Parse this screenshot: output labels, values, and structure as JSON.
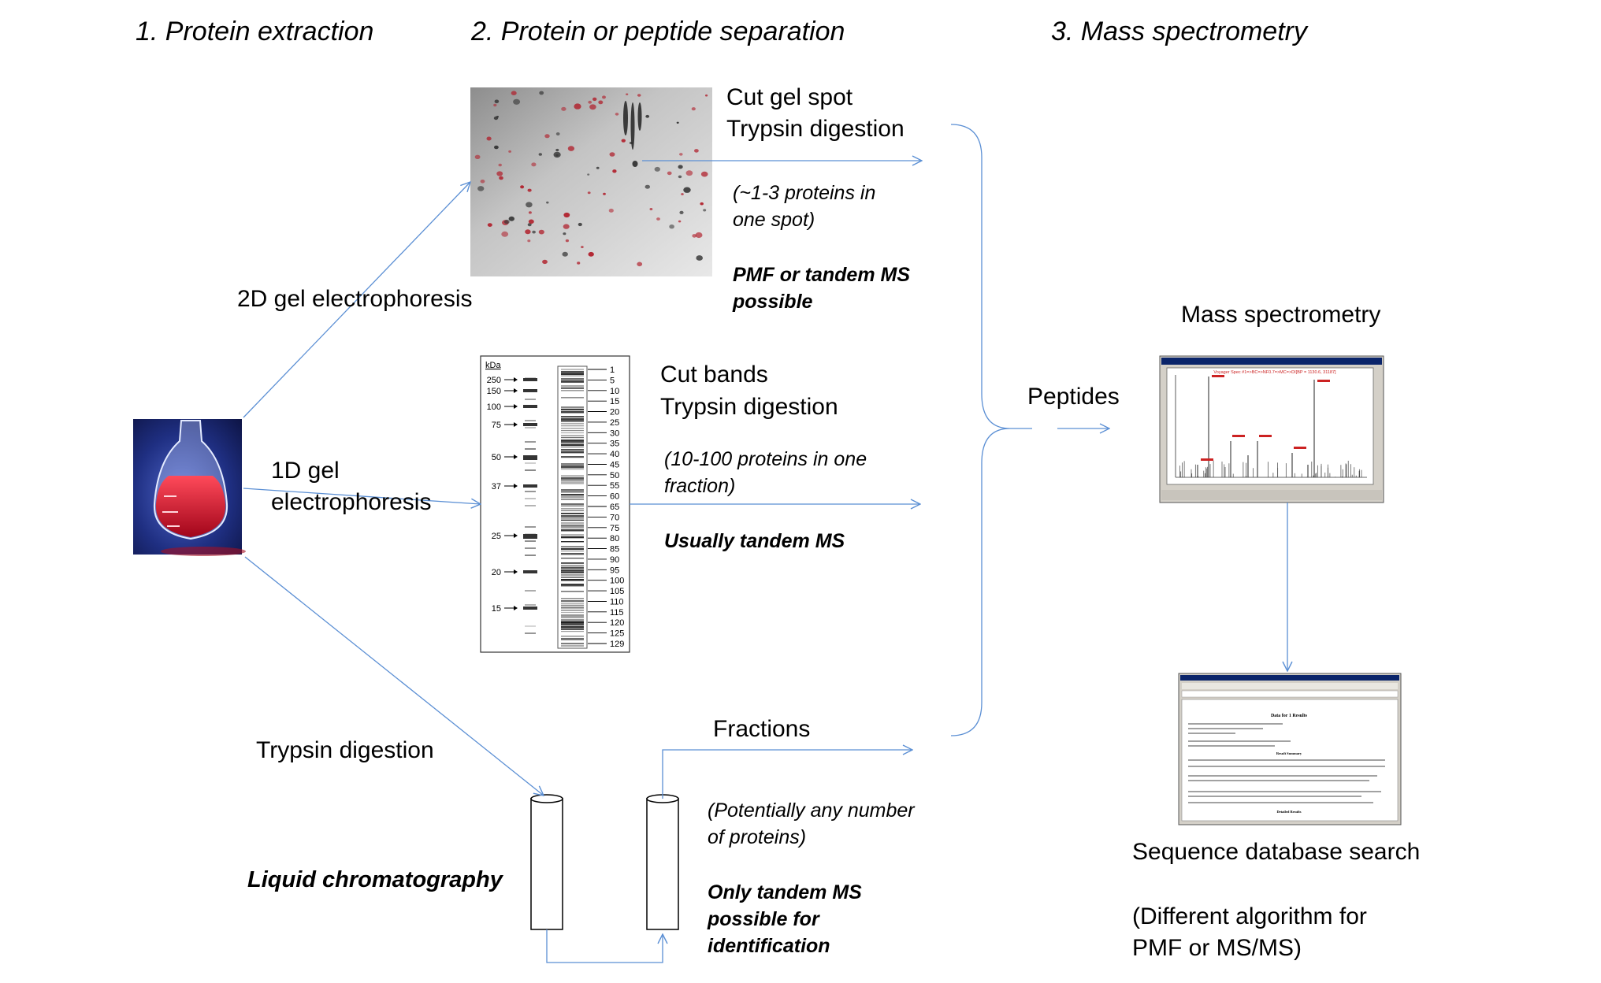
{
  "steps": {
    "extraction": "1. Protein extraction",
    "separation": "2. Protein or peptide separation",
    "mass_spec": "3. Mass spectrometry"
  },
  "methods": {
    "gel2d": "2D gel electrophoresis",
    "gel1d_line1": "1D gel",
    "gel1d_line2": "electrophoresis",
    "trypsin": "Trypsin digestion",
    "lc": "Liquid chromatography"
  },
  "gel2d_branch": {
    "cut_line1": "Cut gel spot",
    "cut_line2": "Trypsin digestion",
    "note_line1": "(~1-3 proteins in",
    "note_line2": "one  spot)",
    "ms_line1": "PMF or tandem MS",
    "ms_line2": "possible"
  },
  "gel1d_branch": {
    "cut_line1": "Cut bands",
    "cut_line2": "Trypsin digestion",
    "note_line1": "(10-100 proteins in one",
    "note_line2": "fraction)",
    "ms_line1": "Usually tandem MS"
  },
  "lc_branch": {
    "fractions": "Fractions",
    "note_line1": "(Potentially any number",
    "note_line2": "of proteins)",
    "ms_line1": "Only tandem MS",
    "ms_line2": "possible for",
    "ms_line3": "identification"
  },
  "ms": {
    "peptides": "Peptides",
    "spectrometry_label": "Mass spectrometry",
    "spectrum_title": "Voyager Spec #1=>BC=>NF0.7=>MC=>DI[BP = 1130.6, 31187]",
    "db_search": "Sequence database search",
    "db_note_line1": "(Different algorithm for",
    "db_note_line2": "PMF or MS/MS)",
    "db_results_title": "Data for 1 Results",
    "db_results_subtitle": "Result Summary",
    "db_results_footer": "Detailed Results"
  },
  "gel1d_ladder": {
    "unit": "kDa",
    "markers": [
      "250",
      "150",
      "100",
      "75",
      "50",
      "37",
      "25",
      "20",
      "15"
    ],
    "lanes": [
      "1",
      "5",
      "10",
      "15",
      "20",
      "25",
      "30",
      "35",
      "40",
      "45",
      "50",
      "55",
      "60",
      "65",
      "70",
      "75",
      "80",
      "85",
      "90",
      "95",
      "100",
      "105",
      "110",
      "115",
      "120",
      "125",
      "129"
    ]
  },
  "colors": {
    "arrow": "#5b8fd4",
    "gel_spot": "#b01e2a",
    "spectrum_peak": "#cc2222"
  }
}
